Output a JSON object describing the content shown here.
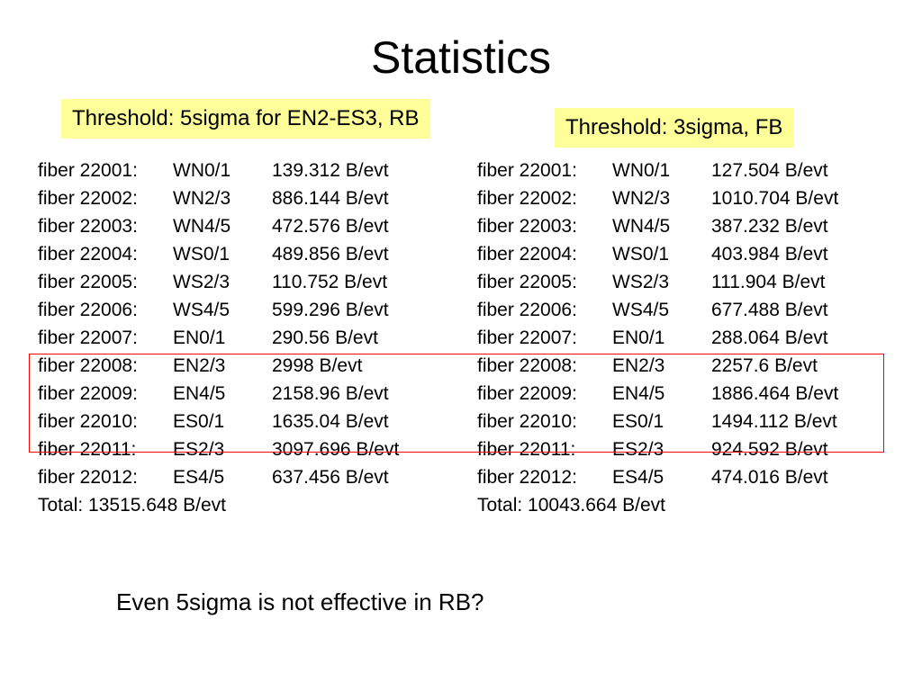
{
  "title": "Statistics",
  "left": {
    "threshold": "Threshold: 5sigma for EN2-ES3, RB",
    "rows": [
      {
        "fiber": "fiber 22001:",
        "channel": "WN0/1",
        "rate": "139.312 B/evt"
      },
      {
        "fiber": "fiber 22002:",
        "channel": "WN2/3",
        "rate": "886.144 B/evt"
      },
      {
        "fiber": "fiber 22003:",
        "channel": "WN4/5",
        "rate": "472.576 B/evt"
      },
      {
        "fiber": "fiber 22004:",
        "channel": "WS0/1",
        "rate": "489.856 B/evt"
      },
      {
        "fiber": "fiber 22005:",
        "channel": "WS2/3",
        "rate": "110.752 B/evt"
      },
      {
        "fiber": "fiber 22006:",
        "channel": "WS4/5",
        "rate": "599.296 B/evt"
      },
      {
        "fiber": "fiber 22007:",
        "channel": "EN0/1",
        "rate": "290.56 B/evt"
      },
      {
        "fiber": "fiber 22008:",
        "channel": "EN2/3",
        "rate": "2998 B/evt"
      },
      {
        "fiber": "fiber 22009:",
        "channel": "EN4/5",
        "rate": "2158.96 B/evt"
      },
      {
        "fiber": "fiber 22010:",
        "channel": "ES0/1",
        "rate": "1635.04 B/evt"
      },
      {
        "fiber": "fiber 22011:",
        "channel": "ES2/3",
        "rate": "3097.696 B/evt"
      },
      {
        "fiber": "fiber 22012:",
        "channel": "ES4/5",
        "rate": "637.456 B/evt"
      }
    ],
    "total": "Total: 13515.648 B/evt"
  },
  "right": {
    "threshold": "Threshold: 3sigma, FB",
    "rows": [
      {
        "fiber": "fiber 22001:",
        "channel": "WN0/1",
        "rate": "127.504 B/evt"
      },
      {
        "fiber": "fiber 22002:",
        "channel": "WN2/3",
        "rate": "1010.704 B/evt"
      },
      {
        "fiber": "fiber 22003:",
        "channel": "WN4/5",
        "rate": "387.232 B/evt"
      },
      {
        "fiber": "fiber 22004:",
        "channel": "WS0/1",
        "rate": "403.984 B/evt"
      },
      {
        "fiber": "fiber 22005:",
        "channel": "WS2/3",
        "rate": "111.904 B/evt"
      },
      {
        "fiber": "fiber 22006:",
        "channel": "WS4/5",
        "rate": "677.488 B/evt"
      },
      {
        "fiber": "fiber 22007:",
        "channel": "EN0/1",
        "rate": "288.064 B/evt"
      },
      {
        "fiber": "fiber 22008:",
        "channel": "EN2/3",
        "rate": "2257.6 B/evt"
      },
      {
        "fiber": "fiber 22009:",
        "channel": "EN4/5",
        "rate": "1886.464 B/evt"
      },
      {
        "fiber": "fiber 22010:",
        "channel": "ES0/1",
        "rate": "1494.112 B/evt"
      },
      {
        "fiber": "fiber 22011:",
        "channel": "ES2/3",
        "rate": "924.592 B/evt"
      },
      {
        "fiber": "fiber 22012:",
        "channel": "ES4/5",
        "rate": "474.016 B/evt"
      }
    ],
    "total": "Total: 10043.664 B/evt"
  },
  "question": "Even 5sigma is not effective in RB?",
  "colors": {
    "threshold_bg": "#ffff99",
    "highlight_border": "#ff0000"
  }
}
